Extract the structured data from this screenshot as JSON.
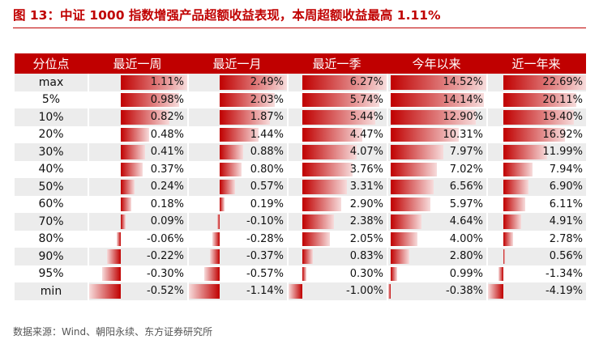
{
  "title": "图 13：中证 1000 指数增强产品超额收益表现，本周超额收益最高 1.11%",
  "source": "数据来源：Wind、朝阳永续、东方证券研究所",
  "colors": {
    "accent": "#c00000",
    "bar_dark": "#c00000",
    "bar_light": "#f7dcdc",
    "stripe": "#ececec"
  },
  "chart_data": {
    "type": "table",
    "columns": [
      "分位点",
      "最近一周",
      "最近一月",
      "最近一季",
      "今年以来",
      "近一年来"
    ],
    "rows": [
      {
        "label": "max",
        "values": [
          1.11,
          2.49,
          6.27,
          14.52,
          22.69
        ],
        "text": [
          "1.11%",
          "2.49%",
          "6.27%",
          "14.52%",
          "22.69%"
        ]
      },
      {
        "label": "5%",
        "values": [
          0.98,
          2.03,
          5.74,
          14.14,
          20.11
        ],
        "text": [
          "0.98%",
          "2.03%",
          "5.74%",
          "14.14%",
          "20.11%"
        ]
      },
      {
        "label": "10%",
        "values": [
          0.82,
          1.87,
          5.44,
          12.9,
          19.4
        ],
        "text": [
          "0.82%",
          "1.87%",
          "5.44%",
          "12.90%",
          "19.40%"
        ]
      },
      {
        "label": "20%",
        "values": [
          0.48,
          1.44,
          4.47,
          10.31,
          16.92
        ],
        "text": [
          "0.48%",
          "1.44%",
          "4.47%",
          "10.31%",
          "16.92%"
        ]
      },
      {
        "label": "30%",
        "values": [
          0.41,
          0.88,
          4.07,
          7.97,
          11.99
        ],
        "text": [
          "0.41%",
          "0.88%",
          "4.07%",
          "7.97%",
          "11.99%"
        ]
      },
      {
        "label": "40%",
        "values": [
          0.37,
          0.8,
          3.76,
          7.02,
          7.94
        ],
        "text": [
          "0.37%",
          "0.80%",
          "3.76%",
          "7.02%",
          "7.94%"
        ]
      },
      {
        "label": "50%",
        "values": [
          0.24,
          0.57,
          3.31,
          6.56,
          6.9
        ],
        "text": [
          "0.24%",
          "0.57%",
          "3.31%",
          "6.56%",
          "6.90%"
        ]
      },
      {
        "label": "60%",
        "values": [
          0.18,
          0.19,
          2.9,
          5.97,
          6.11
        ],
        "text": [
          "0.18%",
          "0.19%",
          "2.90%",
          "5.97%",
          "6.11%"
        ]
      },
      {
        "label": "70%",
        "values": [
          0.09,
          -0.1,
          2.38,
          4.64,
          4.91
        ],
        "text": [
          "0.09%",
          "-0.10%",
          "2.38%",
          "4.64%",
          "4.91%"
        ]
      },
      {
        "label": "80%",
        "values": [
          -0.06,
          -0.28,
          2.05,
          4.0,
          2.78
        ],
        "text": [
          "-0.06%",
          "-0.28%",
          "2.05%",
          "4.00%",
          "2.78%"
        ]
      },
      {
        "label": "90%",
        "values": [
          -0.22,
          -0.37,
          0.83,
          2.8,
          0.56
        ],
        "text": [
          "-0.22%",
          "-0.37%",
          "0.83%",
          "2.80%",
          "0.56%"
        ]
      },
      {
        "label": "95%",
        "values": [
          -0.3,
          -0.57,
          0.3,
          0.99,
          -1.34
        ],
        "text": [
          "-0.30%",
          "-0.57%",
          "0.30%",
          "0.99%",
          "-1.34%"
        ]
      },
      {
        "label": "min",
        "values": [
          -0.52,
          -1.14,
          -1.0,
          -0.38,
          -4.19
        ],
        "text": [
          "-0.52%",
          "-1.14%",
          "-1.00%",
          "-0.38%",
          "-4.19%"
        ]
      }
    ]
  }
}
